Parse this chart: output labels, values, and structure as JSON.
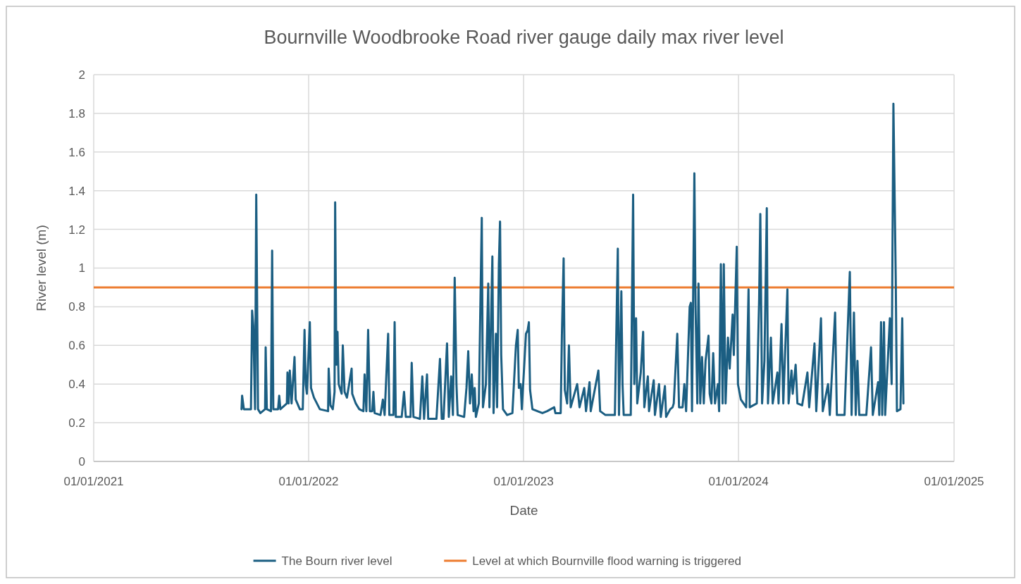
{
  "chart_data": {
    "type": "line",
    "title": "Bournville Woodbrooke Road river gauge daily max river level",
    "xlabel": "Date",
    "ylabel": "River level (m)",
    "xlim": [
      "2021-01-01",
      "2025-01-01"
    ],
    "xticks": [
      {
        "value": "2021-01-01",
        "label": "01/01/2021"
      },
      {
        "value": "2022-01-01",
        "label": "01/01/2022"
      },
      {
        "value": "2023-01-01",
        "label": "01/01/2023"
      },
      {
        "value": "2024-01-01",
        "label": "01/01/2024"
      },
      {
        "value": "2025-01-01",
        "label": "01/01/2025"
      }
    ],
    "ylim": [
      0,
      2
    ],
    "yticks": [
      0,
      0.2,
      0.4,
      0.6,
      0.8,
      1,
      1.2,
      1.4,
      1.6,
      1.8,
      2
    ],
    "grid": true,
    "legend": "bottom",
    "ref_lines": [
      {
        "axis": "y",
        "value": 0.9,
        "label": "Level at which Bournville flood warning is triggered",
        "color": "#ed7d31"
      }
    ],
    "series": [
      {
        "name": "The Bourn river level",
        "color": "#1b5e82",
        "x": [
          "2021-09-09",
          "2021-09-10",
          "2021-09-13",
          "2021-09-25",
          "2021-09-27",
          "2021-09-29",
          "2021-10-02",
          "2021-10-04",
          "2021-10-07",
          "2021-10-11",
          "2021-10-19",
          "2021-10-20",
          "2021-10-22",
          "2021-10-29",
          "2021-10-31",
          "2021-11-02",
          "2021-11-10",
          "2021-11-12",
          "2021-11-14",
          "2021-11-25",
          "2021-11-26",
          "2021-11-28",
          "2021-11-30",
          "2021-12-03",
          "2021-12-08",
          "2021-12-10",
          "2021-12-17",
          "2021-12-22",
          "2021-12-25",
          "2021-12-27",
          "2021-12-29",
          "2022-01-03",
          "2022-01-05",
          "2022-01-10",
          "2022-01-20",
          "2022-02-03",
          "2022-02-04",
          "2022-02-07",
          "2022-02-11",
          "2022-02-14",
          "2022-02-15",
          "2022-02-17",
          "2022-02-19",
          "2022-02-21",
          "2022-02-26",
          "2022-02-28",
          "2022-03-03",
          "2022-03-07",
          "2022-03-15",
          "2022-03-16",
          "2022-03-22",
          "2022-03-28",
          "2022-04-04",
          "2022-04-06",
          "2022-04-09",
          "2022-04-12",
          "2022-04-15",
          "2022-04-19",
          "2022-04-21",
          "2022-04-23",
          "2022-05-03",
          "2022-05-07",
          "2022-05-10",
          "2022-05-16",
          "2022-05-18",
          "2022-05-25",
          "2022-05-27",
          "2022-05-29",
          "2022-06-08",
          "2022-06-12",
          "2022-06-15",
          "2022-06-23",
          "2022-06-25",
          "2022-06-28",
          "2022-07-09",
          "2022-07-13",
          "2022-07-16",
          "2022-07-21",
          "2022-07-23",
          "2022-08-06",
          "2022-08-12",
          "2022-08-15",
          "2022-08-18",
          "2022-08-24",
          "2022-08-27",
          "2022-08-31",
          "2022-09-03",
          "2022-09-06",
          "2022-09-09",
          "2022-09-11",
          "2022-09-22",
          "2022-09-26",
          "2022-09-29",
          "2022-10-02",
          "2022-10-05",
          "2022-10-08",
          "2022-10-10",
          "2022-10-12",
          "2022-10-17",
          "2022-10-22",
          "2022-10-24",
          "2022-10-29",
          "2022-11-02",
          "2022-11-04",
          "2022-11-06",
          "2022-11-09",
          "2022-11-11",
          "2022-11-15",
          "2022-11-17",
          "2022-11-20",
          "2022-11-22",
          "2022-11-24",
          "2022-11-27",
          "2022-12-04",
          "2022-12-13",
          "2022-12-19",
          "2022-12-22",
          "2022-12-24",
          "2022-12-27",
          "2022-12-29",
          "2023-01-05",
          "2023-01-08",
          "2023-01-10",
          "2023-01-12",
          "2023-01-16",
          "2023-02-02",
          "2023-02-10",
          "2023-02-22",
          "2023-02-24",
          "2023-03-05",
          "2023-03-07",
          "2023-03-10",
          "2023-03-12",
          "2023-03-16",
          "2023-03-19",
          "2023-03-22",
          "2023-04-02",
          "2023-04-06",
          "2023-04-14",
          "2023-04-17",
          "2023-04-23",
          "2023-04-25",
          "2023-05-08",
          "2023-05-11",
          "2023-05-20",
          "2023-06-05",
          "2023-06-10",
          "2023-06-12",
          "2023-06-16",
          "2023-06-18",
          "2023-06-20",
          "2023-07-02",
          "2023-07-06",
          "2023-07-08",
          "2023-07-11",
          "2023-07-13",
          "2023-07-19",
          "2023-07-23",
          "2023-07-25",
          "2023-07-31",
          "2023-08-02",
          "2023-08-10",
          "2023-08-12",
          "2023-08-19",
          "2023-08-22",
          "2023-08-29",
          "2023-08-31",
          "2023-09-07",
          "2023-09-11",
          "2023-09-13",
          "2023-09-19",
          "2023-09-22",
          "2023-09-28",
          "2023-10-01",
          "2023-10-04",
          "2023-10-10",
          "2023-10-12",
          "2023-10-14",
          "2023-10-18",
          "2023-10-20",
          "2023-10-23",
          "2023-10-25",
          "2023-10-28",
          "2023-10-31",
          "2023-11-03",
          "2023-11-06",
          "2023-11-11",
          "2023-11-13",
          "2023-11-16",
          "2023-11-19",
          "2023-11-22",
          "2023-11-27",
          "2023-11-29",
          "2023-12-02",
          "2023-12-05",
          "2023-12-07",
          "2023-12-10",
          "2023-12-14",
          "2023-12-17",
          "2023-12-22",
          "2023-12-24",
          "2023-12-29",
          "2023-12-31",
          "2024-01-05",
          "2024-01-14",
          "2024-01-18",
          "2024-01-20",
          "2024-02-01",
          "2024-02-05",
          "2024-02-07",
          "2024-02-10",
          "2024-02-14",
          "2024-02-18",
          "2024-02-20",
          "2024-02-25",
          "2024-02-28",
          "2024-03-07",
          "2024-03-09",
          "2024-03-14",
          "2024-03-17",
          "2024-03-24",
          "2024-03-26",
          "2024-03-31",
          "2024-04-02",
          "2024-04-07",
          "2024-04-10",
          "2024-04-18",
          "2024-04-27",
          "2024-04-30",
          "2024-05-09",
          "2024-05-12",
          "2024-05-20",
          "2024-05-23",
          "2024-06-01",
          "2024-06-04",
          "2024-06-13",
          "2024-06-16",
          "2024-06-29",
          "2024-07-08",
          "2024-07-11",
          "2024-07-15",
          "2024-07-18",
          "2024-07-21",
          "2024-07-24",
          "2024-08-05",
          "2024-08-13",
          "2024-08-16",
          "2024-08-25",
          "2024-08-27",
          "2024-08-30",
          "2024-09-01",
          "2024-09-04",
          "2024-09-06",
          "2024-09-14",
          "2024-09-17",
          "2024-09-20",
          "2024-09-24",
          "2024-09-26",
          "2024-10-02",
          "2024-10-05",
          "2024-10-07"
        ],
        "values": [
          0.27,
          0.34,
          0.27,
          0.27,
          0.78,
          0.7,
          0.27,
          1.38,
          0.27,
          0.25,
          0.27,
          0.59,
          0.27,
          0.26,
          1.09,
          0.27,
          0.27,
          0.34,
          0.27,
          0.3,
          0.46,
          0.3,
          0.47,
          0.3,
          0.54,
          0.32,
          0.27,
          0.27,
          0.68,
          0.4,
          0.35,
          0.72,
          0.38,
          0.33,
          0.27,
          0.26,
          0.48,
          0.29,
          0.27,
          0.36,
          1.34,
          0.5,
          0.67,
          0.4,
          0.35,
          0.6,
          0.36,
          0.33,
          0.48,
          0.35,
          0.3,
          0.27,
          0.26,
          0.45,
          0.26,
          0.68,
          0.26,
          0.26,
          0.36,
          0.25,
          0.24,
          0.32,
          0.24,
          0.66,
          0.24,
          0.24,
          0.72,
          0.23,
          0.23,
          0.36,
          0.23,
          0.23,
          0.51,
          0.23,
          0.22,
          0.44,
          0.22,
          0.45,
          0.22,
          0.22,
          0.53,
          0.22,
          0.22,
          0.61,
          0.23,
          0.44,
          0.24,
          0.95,
          0.4,
          0.24,
          0.23,
          0.38,
          0.57,
          0.3,
          0.45,
          0.26,
          0.38,
          0.23,
          0.3,
          1.26,
          0.28,
          0.4,
          0.92,
          0.28,
          0.63,
          1.06,
          0.25,
          0.66,
          0.28,
          1.02,
          1.24,
          0.55,
          0.27,
          0.24,
          0.25,
          0.6,
          0.68,
          0.38,
          0.4,
          0.27,
          0.66,
          0.68,
          0.72,
          0.37,
          0.27,
          0.25,
          0.26,
          0.28,
          0.25,
          0.25,
          0.65,
          1.05,
          0.37,
          0.3,
          0.6,
          0.28,
          0.4,
          0.28,
          0.38,
          0.26,
          0.41,
          0.26,
          0.47,
          0.26,
          0.24,
          0.24,
          1.1,
          0.24,
          0.88,
          0.4,
          0.24,
          0.24,
          1.38,
          0.4,
          0.74,
          0.3,
          0.46,
          0.67,
          0.28,
          0.44,
          0.26,
          0.42,
          0.24,
          0.4,
          0.23,
          0.39,
          0.23,
          0.27,
          0.28,
          0.3,
          0.66,
          0.28,
          0.28,
          0.4,
          0.26,
          0.8,
          0.82,
          0.26,
          1.49,
          0.8,
          0.3,
          0.92,
          0.3,
          0.54,
          0.3,
          0.52,
          0.65,
          0.35,
          0.3,
          0.56,
          0.3,
          0.4,
          0.26,
          1.02,
          0.3,
          1.02,
          0.3,
          0.64,
          0.48,
          0.76,
          0.55,
          1.11,
          0.4,
          0.32,
          0.28,
          0.89,
          0.28,
          0.3,
          0.84,
          1.28,
          0.3,
          0.52,
          1.31,
          0.3,
          0.64,
          0.3,
          0.46,
          0.3,
          0.71,
          0.3,
          0.89,
          0.3,
          0.47,
          0.35,
          0.5,
          0.3,
          0.29,
          0.46,
          0.28,
          0.61,
          0.26,
          0.74,
          0.26,
          0.4,
          0.24,
          0.77,
          0.24,
          0.24,
          0.98,
          0.24,
          0.77,
          0.24,
          0.52,
          0.24,
          0.24,
          0.59,
          0.24,
          0.41,
          0.24,
          0.72,
          0.24,
          0.72,
          0.24,
          0.74,
          0.4,
          1.85,
          0.94,
          0.26,
          0.27,
          0.74,
          0.3
        ]
      }
    ]
  }
}
